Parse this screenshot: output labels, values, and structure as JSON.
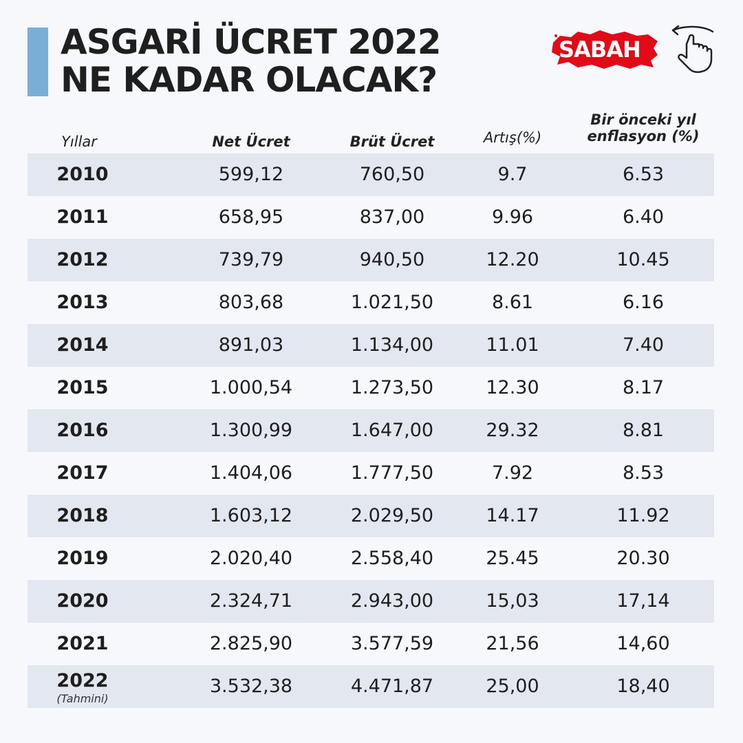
{
  "title": {
    "line1": "ASGARİ ÜCRET 2022",
    "line2": "NE KADAR OLACAK?"
  },
  "logo": {
    "text": "SABAH"
  },
  "icons": {
    "logo_shape": "turkey-map-flag-icon",
    "hand": "pointing-hand-swipe-icon"
  },
  "colors": {
    "accent_bar": "#7aaed6",
    "logo_red": "#e30a17",
    "row_shade": "#e3e7ef",
    "background": "#f7f8fb"
  },
  "table": {
    "headers": {
      "years": "Yıllar",
      "net": "Net Ücret",
      "brut": "Brüt Ücret",
      "artis": "Artış(%)",
      "enflasyon_line1": "Bir önceki yıl",
      "enflasyon_line2": "enflasyon (%)"
    },
    "rows": [
      {
        "year": "2010",
        "net": "599,12",
        "brut": "760,50",
        "artis": "9.7",
        "enflasyon": "6.53"
      },
      {
        "year": "2011",
        "net": "658,95",
        "brut": "837,00",
        "artis": "9.96",
        "enflasyon": "6.40"
      },
      {
        "year": "2012",
        "net": "739,79",
        "brut": "940,50",
        "artis": "12.20",
        "enflasyon": "10.45"
      },
      {
        "year": "2013",
        "net": "803,68",
        "brut": "1.021,50",
        "artis": "8.61",
        "enflasyon": "6.16"
      },
      {
        "year": "2014",
        "net": "891,03",
        "brut": "1.134,00",
        "artis": "11.01",
        "enflasyon": "7.40"
      },
      {
        "year": "2015",
        "net": "1.000,54",
        "brut": "1.273,50",
        "artis": "12.30",
        "enflasyon": "8.17"
      },
      {
        "year": "2016",
        "net": "1.300,99",
        "brut": "1.647,00",
        "artis": "29.32",
        "enflasyon": "8.81"
      },
      {
        "year": "2017",
        "net": "1.404,06",
        "brut": "1.777,50",
        "artis": "7.92",
        "enflasyon": "8.53"
      },
      {
        "year": "2018",
        "net": "1.603,12",
        "brut": "2.029,50",
        "artis": "14.17",
        "enflasyon": "11.92"
      },
      {
        "year": "2019",
        "net": "2.020,40",
        "brut": "2.558,40",
        "artis": "25.45",
        "enflasyon": "20.30"
      },
      {
        "year": "2020",
        "net": "2.324,71",
        "brut": "2.943,00",
        "artis": "15,03",
        "enflasyon": "17,14"
      },
      {
        "year": "2021",
        "net": "2.825,90",
        "brut": "3.577,59",
        "artis": "21,56",
        "enflasyon": "14,60"
      },
      {
        "year": "2022",
        "year_note": "(Tahmini)",
        "net": "3.532,38",
        "brut": "4.471,87",
        "artis": "25,00",
        "enflasyon": "18,40"
      }
    ]
  }
}
